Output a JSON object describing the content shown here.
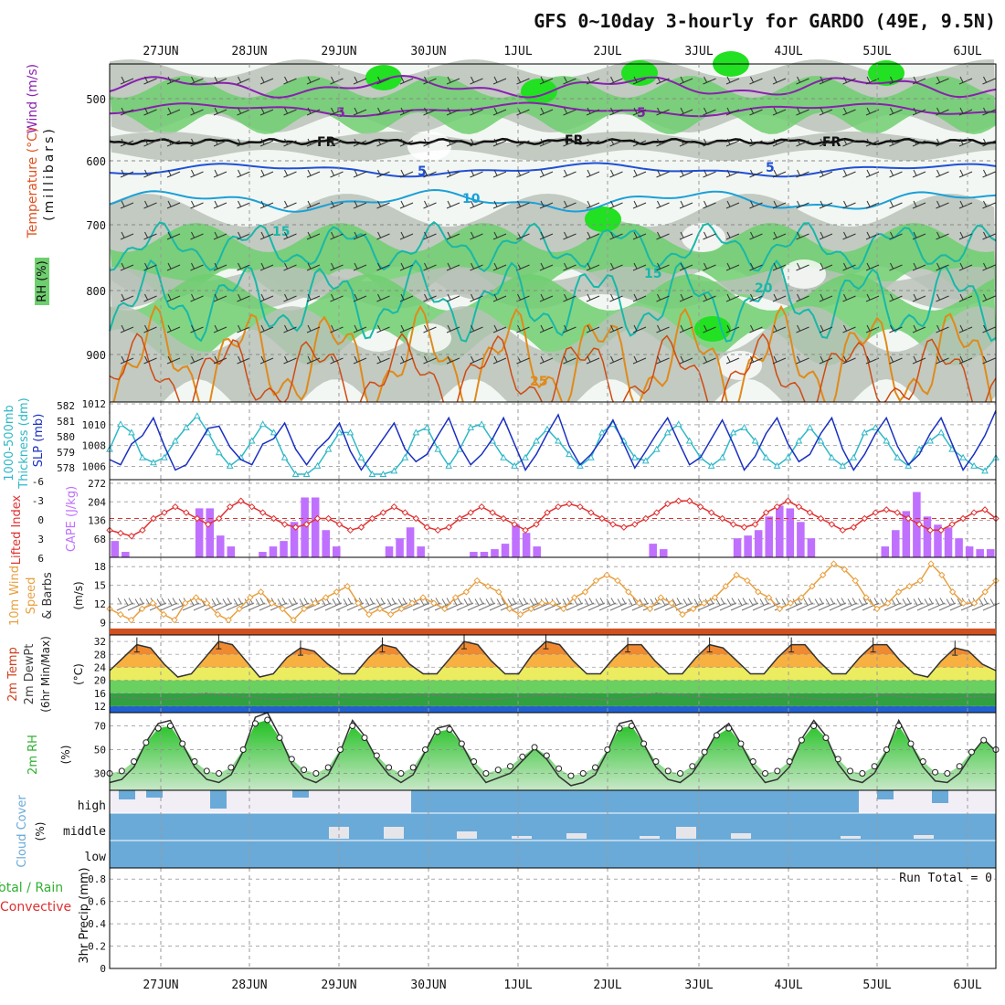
{
  "title": "GFS 0~10day 3-hourly for GARDO (49E, 9.5N)",
  "dates": [
    "27JUN",
    "28JUN",
    "29JUN",
    "30JUN",
    "1JUL",
    "2JUL",
    "3JUL",
    "4JUL",
    "5JUL",
    "6JUL"
  ],
  "colors": {
    "rh_green": "#6fcf6f",
    "rh_bright": "#22e022",
    "rh_grey": "#b8c2b8",
    "rh_light": "#e6f0e6",
    "temp_purple": "#8a1fb0",
    "temp_blue": "#2050d8",
    "temp_cyan": "#1aa0d8",
    "temp_teal": "#18b8a8",
    "temp_orange": "#e08a1a",
    "slp_line": "#1a30c0",
    "thick_line": "#30b8c8",
    "lifted": "#e03030",
    "cape": "#c070ff",
    "wind": "#e8a040",
    "rh2m": "#30b030",
    "cloud": "#6aaad8",
    "cloud_bg": "#f2eef6"
  },
  "upper": {
    "label_wind": "Wind (m/s)",
    "label_temp": "Temperature (°C)",
    "label_rh": "RH (%)",
    "label_mb": "(millibars)",
    "y_ticks": [
      "500",
      "600",
      "700",
      "800",
      "900"
    ],
    "contour_labels": [
      "5",
      "5",
      "FR",
      "FR",
      "FR",
      "5",
      "5",
      "10",
      "15",
      "15",
      "20",
      "25"
    ]
  },
  "panels": {
    "slp": {
      "label_left": "1000-500mb",
      "label_left2": "Thickness (dm)",
      "label_right": "SLP (mb)",
      "left_ticks": [
        "582",
        "581",
        "580",
        "579",
        "578"
      ],
      "right_ticks": [
        "1012",
        "1010",
        "1008",
        "1006"
      ]
    },
    "cape": {
      "label_left": "Lifted Index",
      "label_right": "CAPE (J/kg)",
      "left_ticks": [
        "-6",
        "-3",
        "0",
        "3",
        "6"
      ],
      "right_ticks": [
        "272",
        "204",
        "136",
        "68"
      ]
    },
    "wind": {
      "label1": "10m Wind",
      "label2": "Speed",
      "label3": "& Barbs",
      "units": "(m/s)",
      "ticks": [
        "18",
        "15",
        "12",
        "9"
      ]
    },
    "temp": {
      "label1": "2m Temp",
      "label2": "2m DewPt",
      "label3": "(6hr Min/Max)",
      "units": "(°C)",
      "ticks": [
        "32",
        "28",
        "24",
        "20",
        "16",
        "12"
      ]
    },
    "rh": {
      "label": "2m RH",
      "units": "(%)",
      "ticks": [
        "70",
        "50",
        "30"
      ]
    },
    "cloud": {
      "label": "Cloud Cover",
      "units": "(%)",
      "levels": [
        "high",
        "middle",
        "low"
      ]
    },
    "precip": {
      "label1": "3hr Precip (mm)",
      "label_total": "Total / Rain",
      "label_conv": "Convective",
      "run_total": "Run Total = 0",
      "ticks": [
        "0.8",
        "0.6",
        "0.4",
        "0.2",
        "0"
      ]
    }
  },
  "chart_data": {
    "type": "line",
    "x_labels": [
      "27JUN",
      "28JUN",
      "29JUN",
      "30JUN",
      "1JUL",
      "2JUL",
      "3JUL",
      "4JUL",
      "5JUL",
      "6JUL"
    ],
    "series": [
      {
        "name": "SLP (mb)",
        "values": [
          1007,
          1006.5,
          1008.5,
          1009.3,
          1011,
          1008.3,
          1006,
          1006.5,
          1008.2,
          1010,
          1010.2,
          1008.2,
          1007,
          1006.5,
          1008.5,
          1009,
          1010.5,
          1008,
          1006.5,
          1008,
          1009,
          1010.5,
          1007.8,
          1006,
          1007.5,
          1009,
          1010.5,
          1008,
          1006.8,
          1007.5,
          1009.3,
          1011,
          1008.3,
          1006.5,
          1007.5,
          1009,
          1011,
          1008.5,
          1006,
          1007.5,
          1009.5,
          1011.3,
          1008.3,
          1006.5,
          1007.5,
          1009,
          1010.8,
          1008.5,
          1006.2,
          1007.8,
          1009.5,
          1011,
          1008.7,
          1006.5,
          1007.2,
          1009,
          1010.8,
          1008.5,
          1006,
          1007.3,
          1009.5,
          1011,
          1008.5,
          1006.8,
          1007.5,
          1009.5,
          1011,
          1008,
          1006,
          1007.5,
          1009.5,
          1011,
          1008.3,
          1006.5,
          1007.5,
          1009.5,
          1011,
          1008.5,
          1006,
          1007.5,
          1009.3,
          1011.7
        ]
      },
      {
        "name": "1000-500mb Thickness (dm)",
        "values": [
          579.5,
          581,
          580.5,
          579,
          578.7,
          579,
          580,
          580.8,
          581.5,
          580.5,
          579.3,
          578.5,
          579,
          580,
          581,
          580.5,
          579,
          578,
          578,
          578.5,
          579.5,
          580.5,
          580.5,
          579,
          578,
          578,
          578.2,
          579,
          580.5,
          580.8,
          579.5,
          578.5,
          579.5,
          580.8,
          581,
          580,
          579,
          578.5,
          579,
          580,
          580.7,
          580,
          579.2,
          578.5,
          579,
          580.5,
          581,
          580,
          579,
          578.8,
          579.5,
          580.5,
          581,
          580,
          579,
          578.5,
          579,
          580.5,
          580.8,
          580,
          579,
          578.5,
          579,
          580,
          580.8,
          580,
          579,
          578.5,
          579,
          580.5,
          580.8,
          580,
          579,
          578.5,
          579.5,
          580,
          580.5,
          579.5,
          579,
          578.5,
          578.2,
          579
        ]
      },
      {
        "name": "Lifted Index",
        "values": [
          2,
          2.5,
          3,
          2,
          0,
          -1,
          -2,
          -1,
          0,
          1,
          0,
          -2,
          -3,
          -2,
          -1,
          0,
          1,
          1.5,
          1,
          0,
          0,
          1,
          2,
          1.5,
          0,
          -1,
          -2,
          -1,
          0,
          1.5,
          2,
          1.5,
          0,
          -1,
          -2,
          -1,
          0,
          1,
          2,
          1,
          -1,
          -2,
          -2.5,
          -2,
          -1,
          0,
          1,
          1.5,
          1,
          0,
          -1,
          -2.5,
          -3,
          -3,
          -2,
          -1,
          0,
          1,
          1.5,
          1,
          -1,
          -2,
          -3,
          -2,
          -1,
          0,
          1,
          2,
          1.5,
          0,
          -1,
          -1.5,
          -1,
          0,
          1,
          2,
          2,
          1,
          0,
          -1,
          -1.5,
          0
        ]
      },
      {
        "name": "CAPE (J/kg)",
        "values": [
          60,
          20,
          0,
          0,
          0,
          0,
          0,
          0,
          180,
          180,
          80,
          40,
          0,
          0,
          20,
          40,
          60,
          130,
          220,
          220,
          100,
          40,
          0,
          0,
          0,
          0,
          40,
          70,
          110,
          40,
          0,
          0,
          0,
          0,
          20,
          20,
          30,
          50,
          120,
          90,
          40,
          0,
          0,
          0,
          0,
          0,
          0,
          0,
          0,
          0,
          0,
          50,
          30,
          0,
          0,
          0,
          0,
          0,
          0,
          70,
          80,
          100,
          150,
          190,
          180,
          130,
          70,
          0,
          0,
          0,
          0,
          0,
          0,
          40,
          100,
          170,
          240,
          150,
          120,
          110,
          70,
          40,
          30,
          30
        ]
      },
      {
        "name": "10m Wind Speed",
        "values": [
          11,
          10,
          9,
          11,
          12,
          10,
          9,
          12,
          13,
          12,
          10,
          9,
          11,
          13,
          14,
          12,
          11,
          9,
          11,
          12,
          13,
          14,
          15,
          12,
          10,
          11,
          10,
          11,
          12,
          13,
          12,
          11,
          13,
          14,
          16,
          15,
          14,
          11,
          10,
          11,
          12,
          12,
          11,
          13,
          14,
          16,
          17,
          16,
          14,
          12,
          11,
          13,
          12,
          10,
          11,
          12,
          13,
          15,
          17,
          16,
          14,
          13,
          11,
          12,
          13,
          15,
          17,
          19,
          18,
          16,
          13,
          11,
          12,
          14,
          15,
          16,
          19,
          17,
          14,
          12,
          12,
          14,
          16
        ]
      },
      {
        "name": "2m Temp",
        "values": [
          23,
          27,
          31,
          30,
          25,
          21,
          22,
          27,
          32,
          31,
          26,
          21,
          22,
          27,
          30,
          29,
          25,
          22,
          22,
          27,
          31,
          30,
          25,
          22,
          22,
          27,
          32,
          31,
          26,
          22,
          22,
          28,
          32,
          31,
          26,
          22,
          22,
          27,
          31,
          31,
          26,
          22,
          22,
          27,
          31,
          30,
          26,
          22,
          22,
          27,
          31,
          31,
          26,
          22,
          22,
          27,
          31,
          31,
          26,
          22,
          21,
          26,
          30,
          29,
          25,
          23
        ]
      },
      {
        "name": "2m DewPt",
        "values": [
          15,
          14.5,
          14.5,
          14,
          14.5,
          16,
          15.5,
          15,
          14.5,
          14,
          14.5,
          15,
          15,
          14.5,
          14.5,
          14,
          15,
          15.5,
          15,
          14.5,
          14,
          14.5,
          15,
          15.5,
          15,
          14.5,
          14,
          14,
          15,
          16,
          15.5,
          15,
          14.5,
          14,
          14.5,
          15,
          15,
          14.5,
          14,
          14,
          14.5,
          15.5,
          15,
          14.5,
          14,
          14.5,
          15,
          15
        ]
      },
      {
        "name": "2m RH",
        "values": [
          30,
          32,
          40,
          56,
          68,
          70,
          55,
          40,
          32,
          30,
          35,
          50,
          72,
          75,
          60,
          42,
          33,
          30,
          35,
          50,
          70,
          60,
          45,
          35,
          30,
          35,
          50,
          65,
          67,
          55,
          40,
          30,
          33,
          36,
          44,
          52,
          45,
          34,
          28,
          30,
          35,
          50,
          68,
          70,
          55,
          40,
          32,
          30,
          36,
          48,
          62,
          68,
          55,
          40,
          30,
          32,
          40,
          58,
          70,
          60,
          42,
          32,
          30,
          36,
          50,
          70,
          55,
          40,
          31,
          30,
          36,
          48,
          58,
          50
        ]
      }
    ]
  }
}
